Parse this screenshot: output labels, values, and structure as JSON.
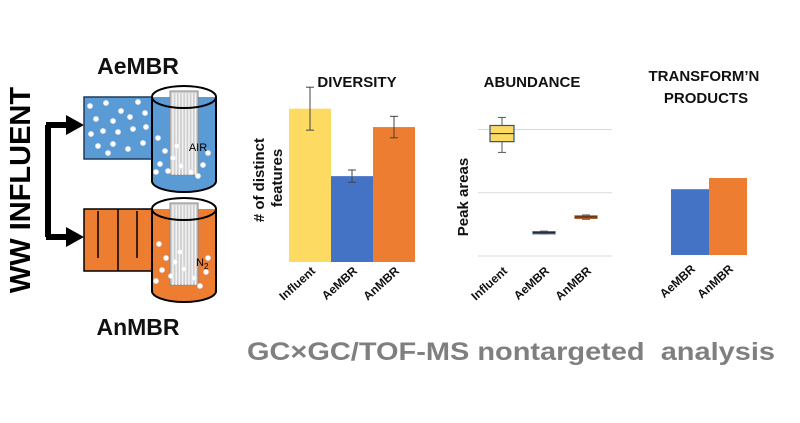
{
  "figure": {
    "side_label": "WW INFLUENT",
    "aerobic_reactor": {
      "label": "AeMBR",
      "gas": "AIR"
    },
    "anaerobic_reactor": {
      "label": "AnMBR",
      "gas_base": "N",
      "gas_sub": "2"
    },
    "footer": "GC×GC/TOF-MS nontargeted  analysis"
  },
  "colors": {
    "influent": "#fddb63",
    "aembr": "#4472c4",
    "anmbr": "#ed7d31",
    "aerobic_tank": "#5b9bd5",
    "footer_text": "#7f7f7f"
  },
  "chart_data": [
    {
      "type": "bar",
      "title": "DIVERSITY",
      "ylabel_lines": [
        "# of distinct",
        "features"
      ],
      "categories": [
        "Influent",
        "AeMBR",
        "AnMBR"
      ],
      "values": [
        100,
        56,
        88
      ],
      "errors": [
        14,
        4,
        7
      ],
      "ylim": [
        0,
        120
      ],
      "grid": false
    },
    {
      "type": "box",
      "title": "ABUNDANCE",
      "ylabel": "Peak areas",
      "categories": [
        "Influent",
        "AeMBR",
        "AnMBR"
      ],
      "boxes": [
        {
          "min": 77,
          "q1": 85,
          "median": 91,
          "q3": 97,
          "max": 103
        },
        {
          "min": 16.5,
          "q1": 17,
          "median": 17.6,
          "q3": 18,
          "max": 18.5
        },
        {
          "min": 27.3,
          "q1": 28,
          "median": 29,
          "q3": 29.8,
          "max": 30.5
        }
      ],
      "ylim": [
        0,
        110
      ],
      "gridlines": [
        0,
        47,
        94
      ],
      "grid": true
    },
    {
      "type": "bar",
      "title_lines": [
        "TRANSFORM’N",
        "PRODUCTS"
      ],
      "categories": [
        "AeMBR",
        "AnMBR"
      ],
      "values": [
        47,
        55
      ],
      "ylim": [
        0,
        100
      ],
      "grid": false
    }
  ]
}
